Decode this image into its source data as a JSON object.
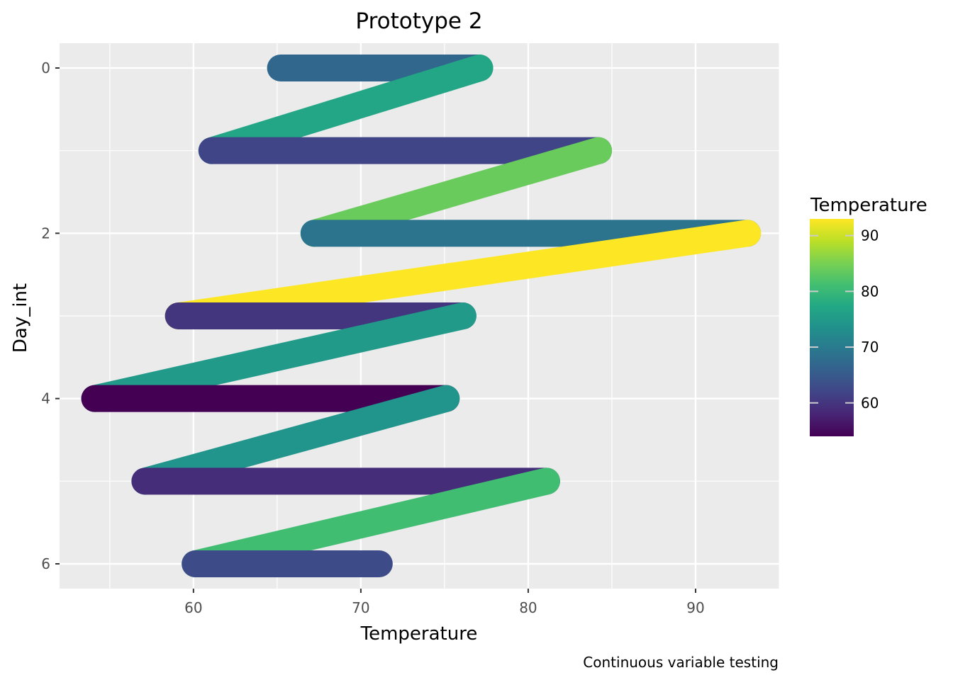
{
  "chart_data": {
    "type": "line",
    "title": "Prototype 2",
    "xlabel": "Temperature",
    "ylabel": "Day_int",
    "caption": "Continuous variable testing",
    "xlim": [
      52,
      95
    ],
    "ylim": [
      -0.3,
      6.3
    ],
    "y_reversed": true,
    "x_ticks": [
      60,
      70,
      80,
      90
    ],
    "y_ticks": [
      0,
      2,
      4,
      6
    ],
    "grid": true,
    "legend": {
      "title": "Temperature",
      "position": "right",
      "type": "colorbar",
      "range": [
        54,
        93
      ],
      "ticks": [
        60,
        70,
        80,
        90
      ],
      "colormap": "viridis"
    },
    "series": [
      {
        "points": [
          {
            "x": 65.2,
            "y": 0,
            "temp": 67
          },
          {
            "x": 77.1,
            "y": 0,
            "temp": 77
          },
          {
            "x": 61.1,
            "y": 1,
            "temp": 62
          },
          {
            "x": 84.2,
            "y": 1,
            "temp": 84
          },
          {
            "x": 67.2,
            "y": 2,
            "temp": 69
          },
          {
            "x": 93.1,
            "y": 2,
            "temp": 93
          },
          {
            "x": 59.1,
            "y": 3,
            "temp": 60
          },
          {
            "x": 76.1,
            "y": 3,
            "temp": 75
          },
          {
            "x": 54.1,
            "y": 4,
            "temp": 54
          },
          {
            "x": 75.1,
            "y": 4,
            "temp": 74
          },
          {
            "x": 57.1,
            "y": 5,
            "temp": 59
          },
          {
            "x": 81.1,
            "y": 5,
            "temp": 81
          },
          {
            "x": 60.1,
            "y": 6,
            "temp": 63
          },
          {
            "x": 71.1,
            "y": 6,
            "temp": 63
          }
        ]
      }
    ]
  }
}
